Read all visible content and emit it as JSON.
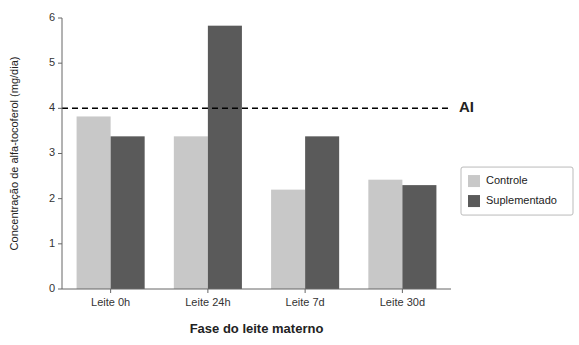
{
  "chart_data": {
    "type": "bar",
    "categories": [
      "Leite 0h",
      "Leite 24h",
      "Leite 7d",
      "Leite 30d"
    ],
    "series": [
      {
        "name": "Controle",
        "color": "#c8c8c8",
        "values": [
          3.82,
          3.38,
          2.2,
          2.42
        ]
      },
      {
        "name": "Suplementado",
        "color": "#5a5a5a",
        "values": [
          3.38,
          5.83,
          3.38,
          2.3
        ]
      }
    ],
    "xlabel": "Fase do leite materno",
    "ylabel": "Concentração de alfa-tocoferol (mg/dia)",
    "ylim": [
      0,
      6
    ],
    "yticks": [
      0,
      1,
      2,
      3,
      4,
      5,
      6
    ],
    "annotations": [
      {
        "label": "AI",
        "y": 4.0,
        "color": "#000000",
        "line_style": "dashed"
      }
    ],
    "legend": "right",
    "grid": false
  }
}
